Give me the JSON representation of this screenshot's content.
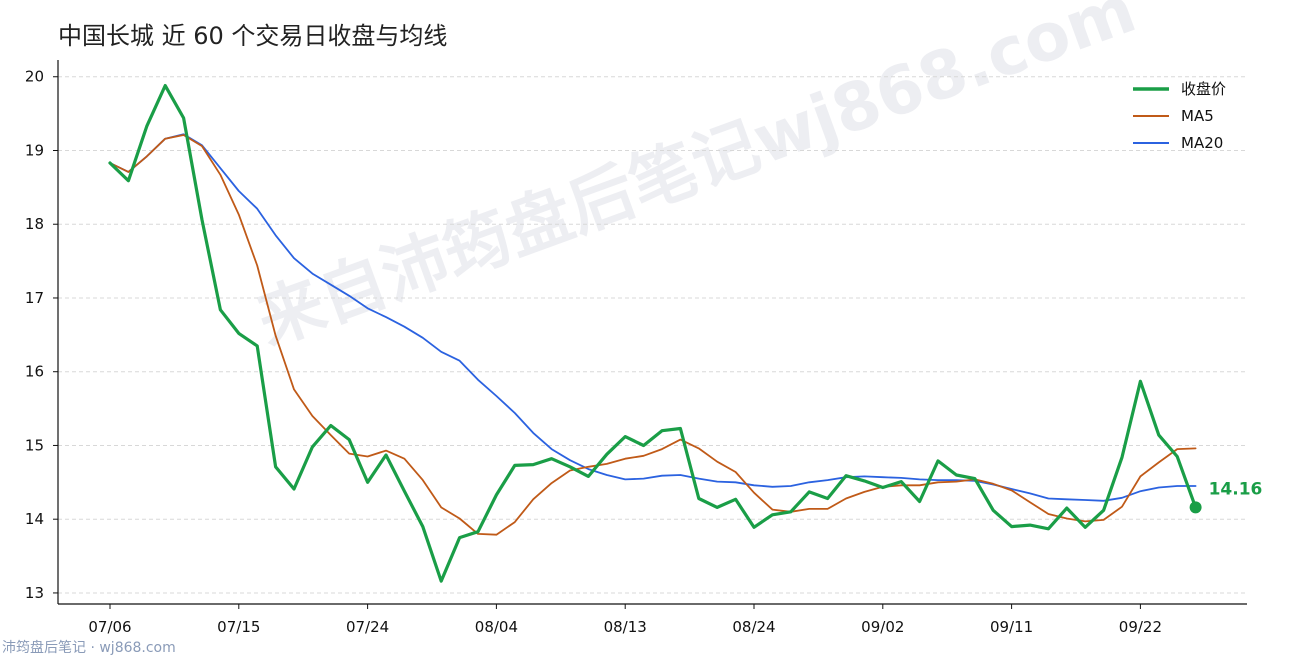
{
  "chart_data": {
    "type": "line",
    "title": "中国长城 近 60 个交易日收盘与均线",
    "xlabel": "",
    "ylabel": "",
    "ylim": [
      12.85,
      20.2
    ],
    "yticks": [
      13,
      14,
      15,
      16,
      17,
      18,
      19,
      20
    ],
    "xtick_labels": [
      "07/06",
      "07/15",
      "07/24",
      "08/04",
      "08/13",
      "08/24",
      "09/02",
      "09/11",
      "09/22"
    ],
    "xtick_positions": [
      0,
      7,
      14,
      21,
      28,
      35,
      42,
      49,
      56
    ],
    "grid": "horizontal-dashed",
    "legend_position": "top-right",
    "x": [
      0,
      1,
      2,
      3,
      4,
      5,
      6,
      7,
      8,
      9,
      10,
      11,
      12,
      13,
      14,
      15,
      16,
      17,
      18,
      19,
      20,
      21,
      22,
      23,
      24,
      25,
      26,
      27,
      28,
      29,
      30,
      31,
      32,
      33,
      34,
      35,
      36,
      37,
      38,
      39,
      40,
      41,
      42,
      43,
      44,
      45,
      46,
      47,
      48,
      49,
      50,
      51,
      52,
      53,
      54,
      55,
      56,
      57,
      58,
      59
    ],
    "series": [
      {
        "name": "收盘价",
        "color": "#1a9e47",
        "values": [
          18.83,
          18.59,
          19.33,
          19.88,
          19.44,
          18.06,
          16.84,
          16.52,
          16.35,
          14.71,
          14.41,
          14.98,
          15.27,
          15.08,
          14.5,
          14.87,
          14.38,
          13.9,
          13.16,
          13.75,
          13.83,
          14.33,
          14.73,
          14.74,
          14.82,
          14.71,
          14.58,
          14.88,
          15.12,
          15.0,
          15.2,
          15.23,
          14.28,
          14.16,
          14.27,
          13.89,
          14.06,
          14.1,
          14.37,
          14.28,
          14.59,
          14.52,
          14.43,
          14.51,
          14.24,
          14.79,
          14.6,
          14.55,
          14.12,
          13.9,
          13.92,
          13.87,
          14.15,
          13.89,
          14.12,
          14.84,
          15.87,
          15.14,
          14.85,
          14.16
        ]
      },
      {
        "name": "MA5",
        "color": "#c05a18",
        "values": [
          18.83,
          18.71,
          18.92,
          19.16,
          19.21,
          19.06,
          18.67,
          18.13,
          17.44,
          16.49,
          15.76,
          15.4,
          15.14,
          14.89,
          14.85,
          14.93,
          14.82,
          14.53,
          14.16,
          14.01,
          13.8,
          13.79,
          13.96,
          14.27,
          14.49,
          14.66,
          14.71,
          14.75,
          14.82,
          14.86,
          14.95,
          15.08,
          14.96,
          14.78,
          14.64,
          14.36,
          14.13,
          14.1,
          14.14,
          14.14,
          14.28,
          14.37,
          14.44,
          14.46,
          14.46,
          14.5,
          14.51,
          14.54,
          14.48,
          14.39,
          14.23,
          14.07,
          14.01,
          13.97,
          13.99,
          14.17,
          14.58,
          14.77,
          14.95,
          14.96
        ]
      },
      {
        "name": "MA20",
        "color": "#2b62e0",
        "values": [
          18.83,
          18.71,
          18.92,
          19.16,
          19.22,
          19.07,
          18.76,
          18.45,
          18.21,
          17.85,
          17.54,
          17.33,
          17.18,
          17.03,
          16.86,
          16.74,
          16.61,
          16.46,
          16.27,
          16.15,
          15.89,
          15.67,
          15.44,
          15.17,
          14.95,
          14.8,
          14.68,
          14.6,
          14.54,
          14.55,
          14.59,
          14.6,
          14.55,
          14.51,
          14.5,
          14.46,
          14.44,
          14.45,
          14.5,
          14.53,
          14.57,
          14.58,
          14.57,
          14.56,
          14.54,
          14.53,
          14.53,
          14.52,
          14.47,
          14.41,
          14.35,
          14.28,
          14.27,
          14.26,
          14.25,
          14.29,
          14.38,
          14.43,
          14.45,
          14.45
        ]
      }
    ],
    "last_value_label": "14.16",
    "watermark": "来自沛筠盘后笔记wj868.com"
  },
  "footer": {
    "text": "沛筠盘后笔记 · wj868.com"
  }
}
